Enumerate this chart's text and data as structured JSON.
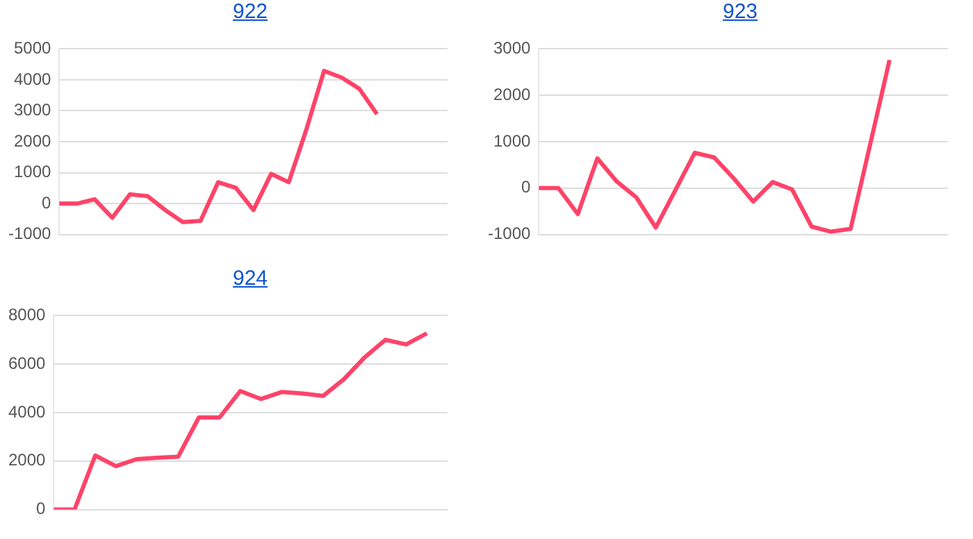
{
  "chart_data": [
    {
      "type": "line",
      "title": "922",
      "categories": [
        null,
        null,
        null,
        null,
        null,
        null,
        null,
        null,
        null,
        null,
        null,
        null,
        null,
        null,
        null,
        null,
        null,
        null,
        null,
        null,
        null,
        null,
        null
      ],
      "values": [
        0,
        0,
        140,
        -460,
        300,
        240,
        -210,
        -600,
        -560,
        690,
        510,
        -210,
        960,
        690,
        2400,
        4290,
        4070,
        3710,
        2890,
        null,
        null,
        null,
        null
      ],
      "color": "#ff4369",
      "ylim": [
        -1000,
        5000
      ],
      "yticks": [
        -1000,
        0,
        1000,
        2000,
        3000,
        4000,
        5000
      ],
      "grid": "y",
      "tick_labels": "y",
      "marker": "none"
    },
    {
      "type": "line",
      "title": "923",
      "categories": [
        null,
        null,
        null,
        null,
        null,
        null,
        null,
        null,
        null,
        null,
        null,
        null,
        null,
        null,
        null,
        null,
        null,
        null,
        null,
        null,
        null,
        null
      ],
      "values": [
        0,
        0,
        -560,
        640,
        140,
        -200,
        -850,
        -50,
        760,
        660,
        210,
        -290,
        130,
        -30,
        -830,
        -940,
        -880,
        930,
        2760,
        null,
        null,
        null
      ],
      "color": "#ff4369",
      "ylim": [
        -1000,
        3000
      ],
      "yticks": [
        -1000,
        0,
        1000,
        2000,
        3000
      ],
      "grid": "y",
      "tick_labels": "y",
      "marker": "none"
    },
    {
      "type": "line",
      "title": "924",
      "categories": [
        null,
        null,
        null,
        null,
        null,
        null,
        null,
        null,
        null,
        null,
        null,
        null,
        null,
        null,
        null,
        null,
        null,
        null,
        null,
        null
      ],
      "values": [
        0,
        0,
        2230,
        1790,
        2080,
        2140,
        2180,
        3800,
        3800,
        4890,
        4560,
        4850,
        4790,
        4690,
        5380,
        6280,
        7000,
        6810,
        7270,
        null
      ],
      "color": "#ff4369",
      "ylim": [
        0,
        8000
      ],
      "yticks": [
        0,
        2000,
        4000,
        6000,
        8000
      ],
      "grid": "y",
      "tick_labels": "y",
      "marker": "none"
    }
  ]
}
